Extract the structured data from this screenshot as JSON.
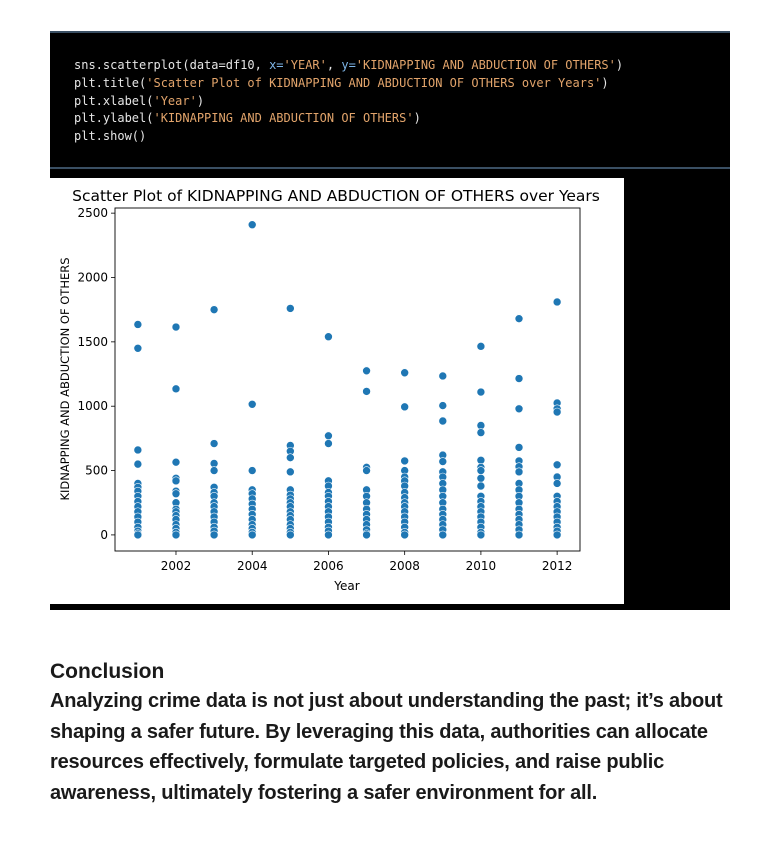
{
  "code": {
    "lines": [
      [
        {
          "t": "sns.scatterplot(data=df10, ",
          "c": ""
        },
        {
          "t": "x=",
          "c": "kw"
        },
        {
          "t": "'YEAR'",
          "c": "str"
        },
        {
          "t": ", ",
          "c": ""
        },
        {
          "t": "y=",
          "c": "kw"
        },
        {
          "t": "'KIDNAPPING AND ABDUCTION OF OTHERS'",
          "c": "str"
        },
        {
          "t": ")",
          "c": ""
        }
      ],
      [
        {
          "t": "plt.title(",
          "c": ""
        },
        {
          "t": "'Scatter Plot of KIDNAPPING AND ABDUCTION OF OTHERS over Years'",
          "c": "str"
        },
        {
          "t": ")",
          "c": ""
        }
      ],
      [
        {
          "t": "plt.xlabel(",
          "c": ""
        },
        {
          "t": "'Year'",
          "c": "str"
        },
        {
          "t": ")",
          "c": ""
        }
      ],
      [
        {
          "t": "plt.ylabel(",
          "c": ""
        },
        {
          "t": "'KIDNAPPING AND ABDUCTION OF OTHERS'",
          "c": "str"
        },
        {
          "t": ")",
          "c": ""
        }
      ],
      [
        {
          "t": "plt.show()",
          "c": ""
        }
      ]
    ]
  },
  "chart_data": {
    "type": "scatter",
    "title": "Scatter Plot of KIDNAPPING AND ABDUCTION OF OTHERS over Years",
    "xlabel": "Year",
    "ylabel": "KIDNAPPING AND ABDUCTION OF OTHERS",
    "xlim": [
      2000.4,
      2012.6
    ],
    "ylim": [
      -125,
      2540
    ],
    "xticks": [
      2002,
      2004,
      2006,
      2008,
      2010,
      2012
    ],
    "yticks": [
      0,
      500,
      1000,
      1500,
      2000,
      2500
    ],
    "grid": false,
    "marker_color": "#1f77b4",
    "points_by_year": [
      {
        "year": 2001,
        "values": [
          1635,
          1450,
          660,
          550,
          400,
          370,
          340,
          300,
          260,
          220,
          180,
          140,
          100,
          60,
          30,
          10,
          0
        ]
      },
      {
        "year": 2002,
        "values": [
          1615,
          1135,
          565,
          440,
          420,
          340,
          320,
          250,
          200,
          180,
          150,
          120,
          80,
          50,
          20,
          0
        ]
      },
      {
        "year": 2003,
        "values": [
          1750,
          710,
          555,
          500,
          370,
          330,
          300,
          250,
          220,
          180,
          140,
          100,
          60,
          30,
          0
        ]
      },
      {
        "year": 2004,
        "values": [
          2410,
          1015,
          500,
          350,
          320,
          280,
          240,
          200,
          160,
          120,
          80,
          50,
          20,
          0
        ]
      },
      {
        "year": 2005,
        "values": [
          1760,
          695,
          650,
          600,
          490,
          350,
          310,
          280,
          250,
          220,
          180,
          150,
          120,
          80,
          50,
          20,
          0
        ]
      },
      {
        "year": 2006,
        "values": [
          1540,
          770,
          710,
          420,
          380,
          330,
          300,
          260,
          220,
          180,
          140,
          100,
          60,
          30,
          0
        ]
      },
      {
        "year": 2007,
        "values": [
          1275,
          1115,
          525,
          500,
          350,
          300,
          250,
          200,
          160,
          120,
          80,
          40,
          10,
          0
        ]
      },
      {
        "year": 2008,
        "values": [
          1260,
          995,
          575,
          500,
          450,
          420,
          380,
          330,
          290,
          250,
          220,
          180,
          140,
          100,
          60,
          20,
          0
        ]
      },
      {
        "year": 2009,
        "values": [
          1235,
          1005,
          885,
          620,
          570,
          490,
          450,
          400,
          350,
          300,
          250,
          200,
          160,
          120,
          80,
          40,
          0
        ]
      },
      {
        "year": 2010,
        "values": [
          1465,
          1110,
          850,
          795,
          580,
          525,
          500,
          440,
          380,
          300,
          260,
          220,
          180,
          140,
          100,
          60,
          20,
          0
        ]
      },
      {
        "year": 2011,
        "values": [
          1680,
          1215,
          980,
          680,
          575,
          530,
          490,
          400,
          350,
          300,
          250,
          200,
          160,
          120,
          80,
          40,
          0
        ]
      },
      {
        "year": 2012,
        "values": [
          1810,
          1025,
          980,
          955,
          545,
          450,
          400,
          300,
          260,
          220,
          180,
          140,
          100,
          60,
          30,
          0
        ]
      }
    ]
  },
  "conclusion": {
    "heading": "Conclusion",
    "body": "Analyzing crime data is not just about understanding the past; it’s about shaping a safer future. By leveraging this data, authorities can allocate resources effectively, formulate targeted policies, and raise public awareness, ultimately fostering a safer environment for all."
  }
}
